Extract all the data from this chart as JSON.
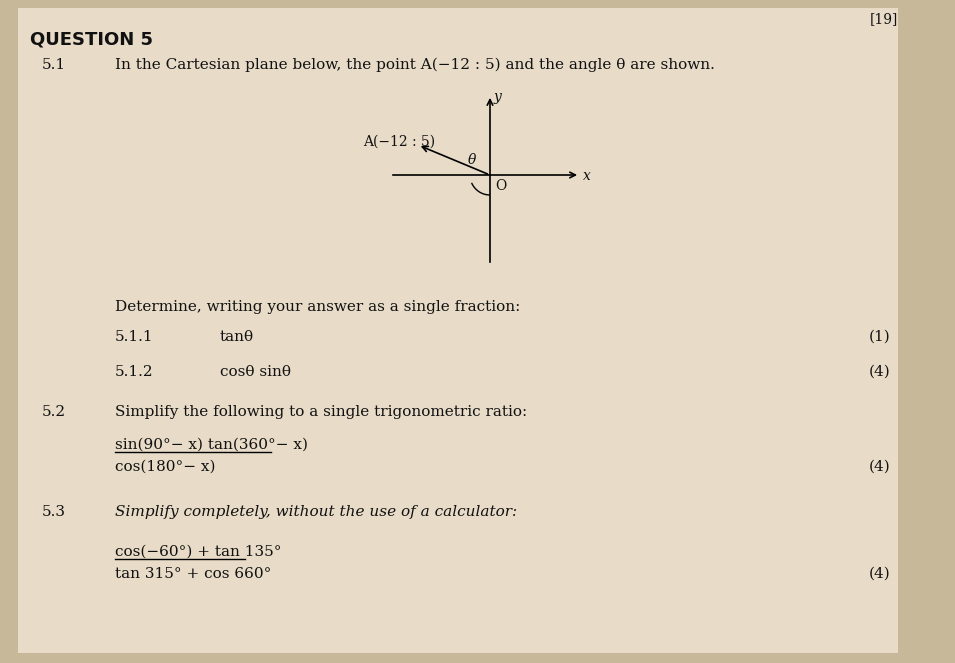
{
  "title": "QUESTION 5",
  "bg_color": "#d4c9b0",
  "page_bg": "#c8bda0",
  "text_color": "#1a1a1a",
  "section_51_label": "5.1",
  "section_51_text": "In the Cartesian plane below, the point A(−12 : 5) and the angle θ are shown.",
  "point_label": "A(−12 : 5)",
  "determine_text": "Determine, writing your answer as a single fraction:",
  "sub511_label": "5.1.1",
  "sub511_text": "tanθ",
  "sub511_marks": "(1)",
  "sub512_label": "5.1.2",
  "sub512_text": "cosθ sinθ",
  "sub512_marks": "(4)",
  "section_52_label": "5.2",
  "section_52_text": "Simplify the following to a single trigonometric ratio:",
  "frac52_num": "sin(90°− x) tan(360°− x)",
  "frac52_den": "cos(180°− x)",
  "section_52_marks": "(4)",
  "section_53_label": "5.3",
  "section_53_text": "Simplify completely, without the use of a calculator:",
  "frac53_num": "cos(−60°) + tan 135°",
  "frac53_den": "tan 315° + cos 660°",
  "section_53_marks": "(4)",
  "top_right": "[19]"
}
